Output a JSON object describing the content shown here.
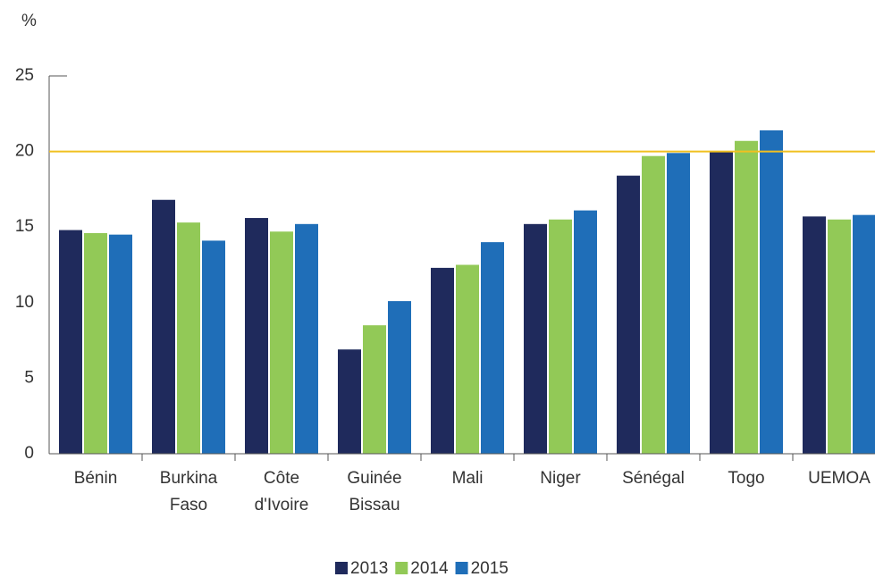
{
  "chart_data": {
    "type": "bar",
    "y_label": "%",
    "categories": [
      "Bénin",
      "Burkina Faso",
      "Côte d'Ivoire",
      "Guinée Bissau",
      "Mali",
      "Niger",
      "Sénégal",
      "Togo",
      "UEMOA"
    ],
    "series": [
      {
        "name": "2013",
        "color": "#1f2a5c",
        "values": [
          14.8,
          16.8,
          15.6,
          6.9,
          12.3,
          15.2,
          18.4,
          20.0,
          15.7
        ]
      },
      {
        "name": "2014",
        "color": "#92c957",
        "values": [
          14.6,
          15.3,
          14.7,
          8.5,
          12.5,
          15.5,
          19.7,
          20.7,
          15.5
        ]
      },
      {
        "name": "2015",
        "color": "#1f6eb8",
        "values": [
          14.5,
          14.1,
          15.2,
          10.1,
          14.0,
          16.1,
          19.9,
          21.4,
          15.8
        ]
      }
    ],
    "ylim": [
      0,
      25
    ],
    "yticks": [
      0,
      5,
      10,
      15,
      20,
      25
    ],
    "reference_line": 20,
    "reference_color": "#f0c020",
    "legend": "bottom"
  }
}
